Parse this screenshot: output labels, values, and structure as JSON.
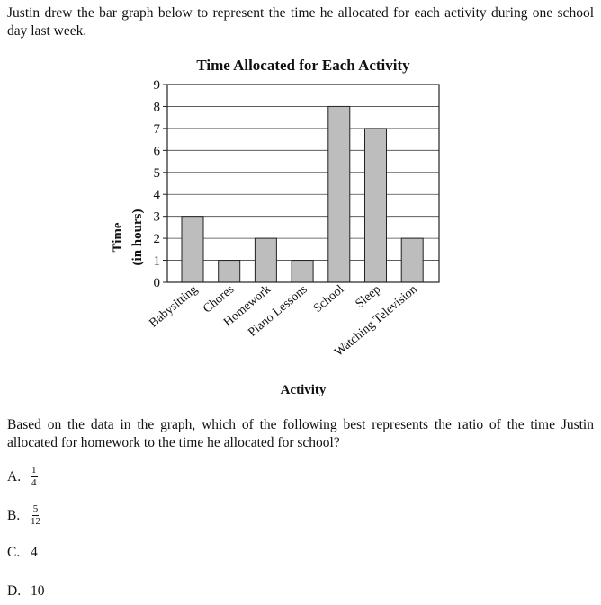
{
  "intro": "Justin drew the bar graph below to represent the time he allocated for each activity during one school day last week.",
  "question": "Based on the data in the graph, which of the following best represents the ratio of the time Justin allocated for homework to the time he allocated for school?",
  "choices": [
    {
      "letter": "A.",
      "numerator": "1",
      "denominator": "4"
    },
    {
      "letter": "B.",
      "numerator": "5",
      "denominator": "12"
    },
    {
      "letter": "C.",
      "value": "4"
    },
    {
      "letter": "D.",
      "value": "10"
    }
  ],
  "chart_data": {
    "type": "bar",
    "title": "Time Allocated for Each Activity",
    "xlabel": "Activity",
    "ylabel": "Time",
    "ylabel_sub": "(in hours)",
    "categories": [
      "Babysitting",
      "Chores",
      "Homework",
      "Piano Lessons",
      "School",
      "Sleep",
      "Watching Television"
    ],
    "values": [
      3,
      1,
      2,
      1,
      8,
      7,
      2
    ],
    "ylim": [
      0,
      9
    ],
    "yticks": [
      "0",
      "1",
      "2",
      "3",
      "4",
      "5",
      "6",
      "7",
      "8",
      "9"
    ],
    "grid": true,
    "bar_color": "#bdbdbd"
  }
}
